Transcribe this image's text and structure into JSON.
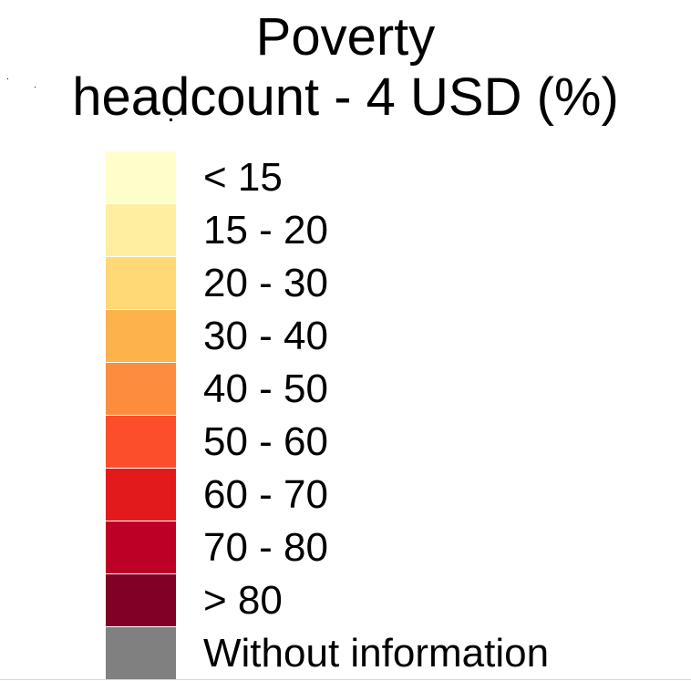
{
  "legend": {
    "title_line1": "Poverty",
    "title_line2": "headcount - 4 USD (%)",
    "items": [
      {
        "label": "< 15",
        "color": "#ffffcc"
      },
      {
        "label": "15 - 20",
        "color": "#ffeda0"
      },
      {
        "label": "20 - 30",
        "color": "#fed976"
      },
      {
        "label": "30 - 40",
        "color": "#feb24c"
      },
      {
        "label": "40 - 50",
        "color": "#fd8d3c"
      },
      {
        "label": "50 - 60",
        "color": "#fc4e2a"
      },
      {
        "label": "60 - 70",
        "color": "#e31a1c"
      },
      {
        "label": "70 - 80",
        "color": "#bd0026"
      },
      {
        "label": "> 80",
        "color": "#800026"
      },
      {
        "label": "Without information",
        "color": "#808080"
      }
    ]
  }
}
